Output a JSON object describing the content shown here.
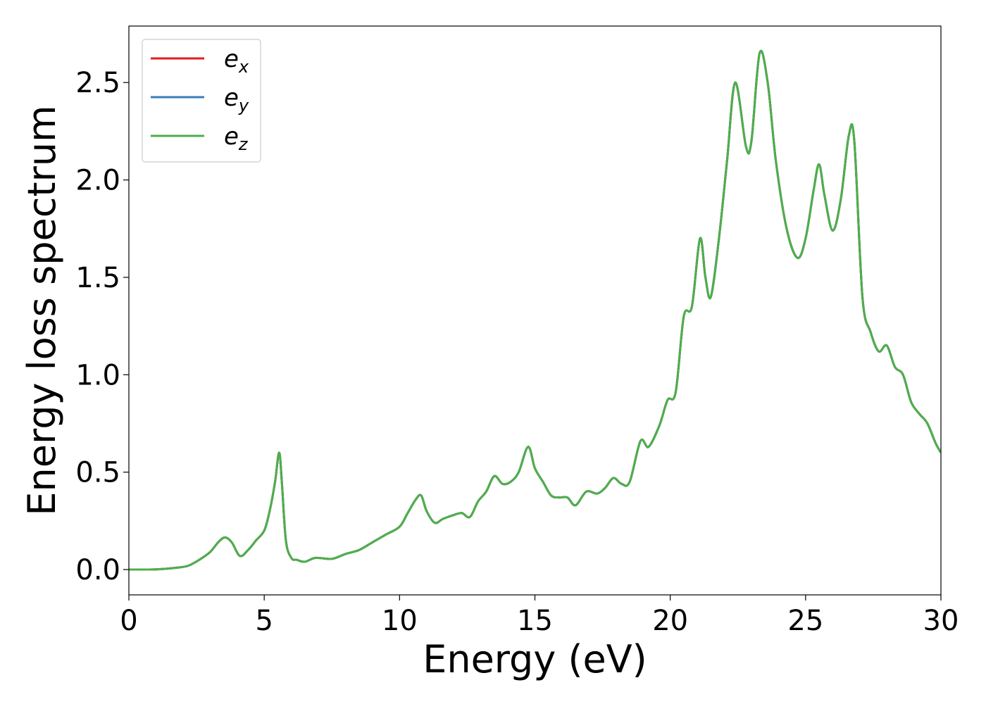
{
  "chart_data": {
    "type": "line",
    "title": "",
    "xlabel": "Energy (eV)",
    "ylabel": "Energy loss spectrum",
    "xlim": [
      0,
      30
    ],
    "ylim": [
      -0.13,
      2.79
    ],
    "xticks": [
      0,
      5,
      10,
      15,
      20,
      25,
      30
    ],
    "xtick_labels": [
      "0",
      "5",
      "10",
      "15",
      "20",
      "25",
      "30"
    ],
    "yticks": [
      0.0,
      0.5,
      1.0,
      1.5,
      2.0,
      2.5
    ],
    "ytick_labels": [
      "0.0",
      "0.5",
      "1.0",
      "1.5",
      "2.0",
      "2.5"
    ],
    "grid": false,
    "legend_position": "top-left",
    "x": [
      0,
      1,
      1.8,
      2.2,
      2.6,
      3.0,
      3.3,
      3.55,
      3.8,
      4.1,
      4.4,
      4.7,
      5.0,
      5.2,
      5.4,
      5.55,
      5.65,
      5.8,
      6.0,
      6.2,
      6.5,
      6.9,
      7.5,
      8.0,
      8.5,
      9.0,
      9.5,
      10.0,
      10.3,
      10.6,
      10.8,
      11.0,
      11.3,
      11.6,
      12.0,
      12.3,
      12.6,
      12.9,
      13.2,
      13.5,
      13.8,
      14.1,
      14.4,
      14.75,
      15.0,
      15.3,
      15.6,
      15.9,
      16.2,
      16.5,
      16.9,
      17.3,
      17.6,
      17.9,
      18.2,
      18.5,
      18.9,
      19.2,
      19.6,
      19.9,
      20.2,
      20.5,
      20.8,
      21.1,
      21.3,
      21.5,
      21.8,
      22.1,
      22.4,
      22.8,
      23.0,
      23.3,
      23.6,
      23.9,
      24.3,
      24.7,
      25.0,
      25.3,
      25.5,
      25.7,
      26.0,
      26.3,
      26.6,
      26.8,
      27.1,
      27.4,
      27.7,
      28.0,
      28.3,
      28.6,
      28.9,
      29.2,
      29.5,
      29.8,
      30.0
    ],
    "series": [
      {
        "name": "e_x",
        "color": "#e41a1c",
        "values": [
          0.0,
          0.001,
          0.01,
          0.02,
          0.05,
          0.09,
          0.14,
          0.165,
          0.14,
          0.07,
          0.1,
          0.15,
          0.2,
          0.3,
          0.45,
          0.6,
          0.45,
          0.15,
          0.06,
          0.05,
          0.04,
          0.06,
          0.055,
          0.08,
          0.1,
          0.14,
          0.18,
          0.22,
          0.29,
          0.36,
          0.38,
          0.3,
          0.24,
          0.26,
          0.28,
          0.29,
          0.27,
          0.35,
          0.4,
          0.48,
          0.44,
          0.45,
          0.5,
          0.63,
          0.52,
          0.45,
          0.38,
          0.37,
          0.37,
          0.33,
          0.4,
          0.39,
          0.42,
          0.47,
          0.44,
          0.45,
          0.66,
          0.63,
          0.74,
          0.87,
          0.91,
          1.3,
          1.35,
          1.7,
          1.5,
          1.4,
          1.7,
          2.1,
          2.5,
          2.17,
          2.2,
          2.65,
          2.5,
          2.1,
          1.75,
          1.6,
          1.7,
          1.95,
          2.08,
          1.92,
          1.74,
          1.9,
          2.23,
          2.2,
          1.4,
          1.22,
          1.12,
          1.15,
          1.04,
          1.0,
          0.86,
          0.8,
          0.75,
          0.65,
          0.6
        ]
      },
      {
        "name": "e_y",
        "color": "#377eb8",
        "values": [
          0.0,
          0.001,
          0.01,
          0.02,
          0.05,
          0.09,
          0.14,
          0.165,
          0.14,
          0.07,
          0.1,
          0.15,
          0.2,
          0.3,
          0.45,
          0.6,
          0.45,
          0.15,
          0.06,
          0.05,
          0.04,
          0.06,
          0.055,
          0.08,
          0.1,
          0.14,
          0.18,
          0.22,
          0.29,
          0.36,
          0.38,
          0.3,
          0.24,
          0.26,
          0.28,
          0.29,
          0.27,
          0.35,
          0.4,
          0.48,
          0.44,
          0.45,
          0.5,
          0.63,
          0.52,
          0.45,
          0.38,
          0.37,
          0.37,
          0.33,
          0.4,
          0.39,
          0.42,
          0.47,
          0.44,
          0.45,
          0.66,
          0.63,
          0.74,
          0.87,
          0.91,
          1.3,
          1.35,
          1.7,
          1.5,
          1.4,
          1.7,
          2.1,
          2.5,
          2.17,
          2.2,
          2.65,
          2.5,
          2.1,
          1.75,
          1.6,
          1.7,
          1.95,
          2.08,
          1.92,
          1.74,
          1.9,
          2.23,
          2.2,
          1.4,
          1.22,
          1.12,
          1.15,
          1.04,
          1.0,
          0.86,
          0.8,
          0.75,
          0.65,
          0.6
        ]
      },
      {
        "name": "e_z",
        "color": "#4daf4a",
        "values": [
          0.0,
          0.001,
          0.01,
          0.02,
          0.05,
          0.09,
          0.14,
          0.165,
          0.14,
          0.07,
          0.1,
          0.15,
          0.2,
          0.3,
          0.45,
          0.6,
          0.45,
          0.15,
          0.06,
          0.05,
          0.04,
          0.06,
          0.055,
          0.08,
          0.1,
          0.14,
          0.18,
          0.22,
          0.29,
          0.36,
          0.38,
          0.3,
          0.24,
          0.26,
          0.28,
          0.29,
          0.27,
          0.35,
          0.4,
          0.48,
          0.44,
          0.45,
          0.5,
          0.63,
          0.52,
          0.45,
          0.38,
          0.37,
          0.37,
          0.33,
          0.4,
          0.39,
          0.42,
          0.47,
          0.44,
          0.45,
          0.66,
          0.63,
          0.74,
          0.87,
          0.91,
          1.3,
          1.35,
          1.7,
          1.5,
          1.4,
          1.7,
          2.1,
          2.5,
          2.17,
          2.2,
          2.65,
          2.5,
          2.1,
          1.75,
          1.6,
          1.7,
          1.95,
          2.08,
          1.92,
          1.74,
          1.9,
          2.23,
          2.2,
          1.4,
          1.22,
          1.12,
          1.15,
          1.04,
          1.0,
          0.86,
          0.8,
          0.75,
          0.65,
          0.6
        ]
      }
    ],
    "legend": [
      {
        "base": "e",
        "sub": "x",
        "color": "#e41a1c"
      },
      {
        "base": "e",
        "sub": "y",
        "color": "#377eb8"
      },
      {
        "base": "e",
        "sub": "z",
        "color": "#4daf4a"
      }
    ]
  }
}
